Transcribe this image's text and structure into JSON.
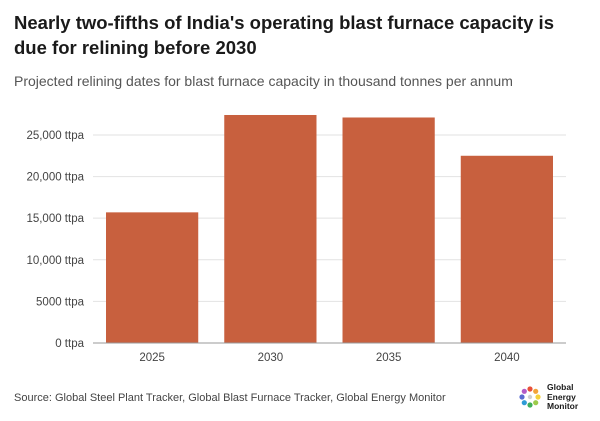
{
  "header": {
    "title": "Nearly two-fifths of India's operating blast furnace capacity is due for relining before 2030",
    "subtitle": "Projected relining dates for blast furnace capacity in thousand tonnes per annum"
  },
  "chart_data": {
    "type": "bar",
    "categories": [
      "2025",
      "2030",
      "2035",
      "2040"
    ],
    "values": [
      15700,
      27400,
      27100,
      22500
    ],
    "yticks": [
      0,
      5000,
      10000,
      15000,
      20000,
      25000
    ],
    "ytick_labels": [
      "0 ttpa",
      "5000 ttpa",
      "10,000 ttpa",
      "15,000 ttpa",
      "20,000 ttpa",
      "25,000 ttpa"
    ],
    "ylim": [
      0,
      28000
    ],
    "bar_color": "#c8603e",
    "grid": true,
    "legend": "none"
  },
  "footer": {
    "source": "Source: Global Steel Plant Tracker, Global Blast Furnace Tracker, Global Energy Monitor",
    "logo_lines": [
      "Global",
      "Energy",
      "Monitor"
    ]
  }
}
